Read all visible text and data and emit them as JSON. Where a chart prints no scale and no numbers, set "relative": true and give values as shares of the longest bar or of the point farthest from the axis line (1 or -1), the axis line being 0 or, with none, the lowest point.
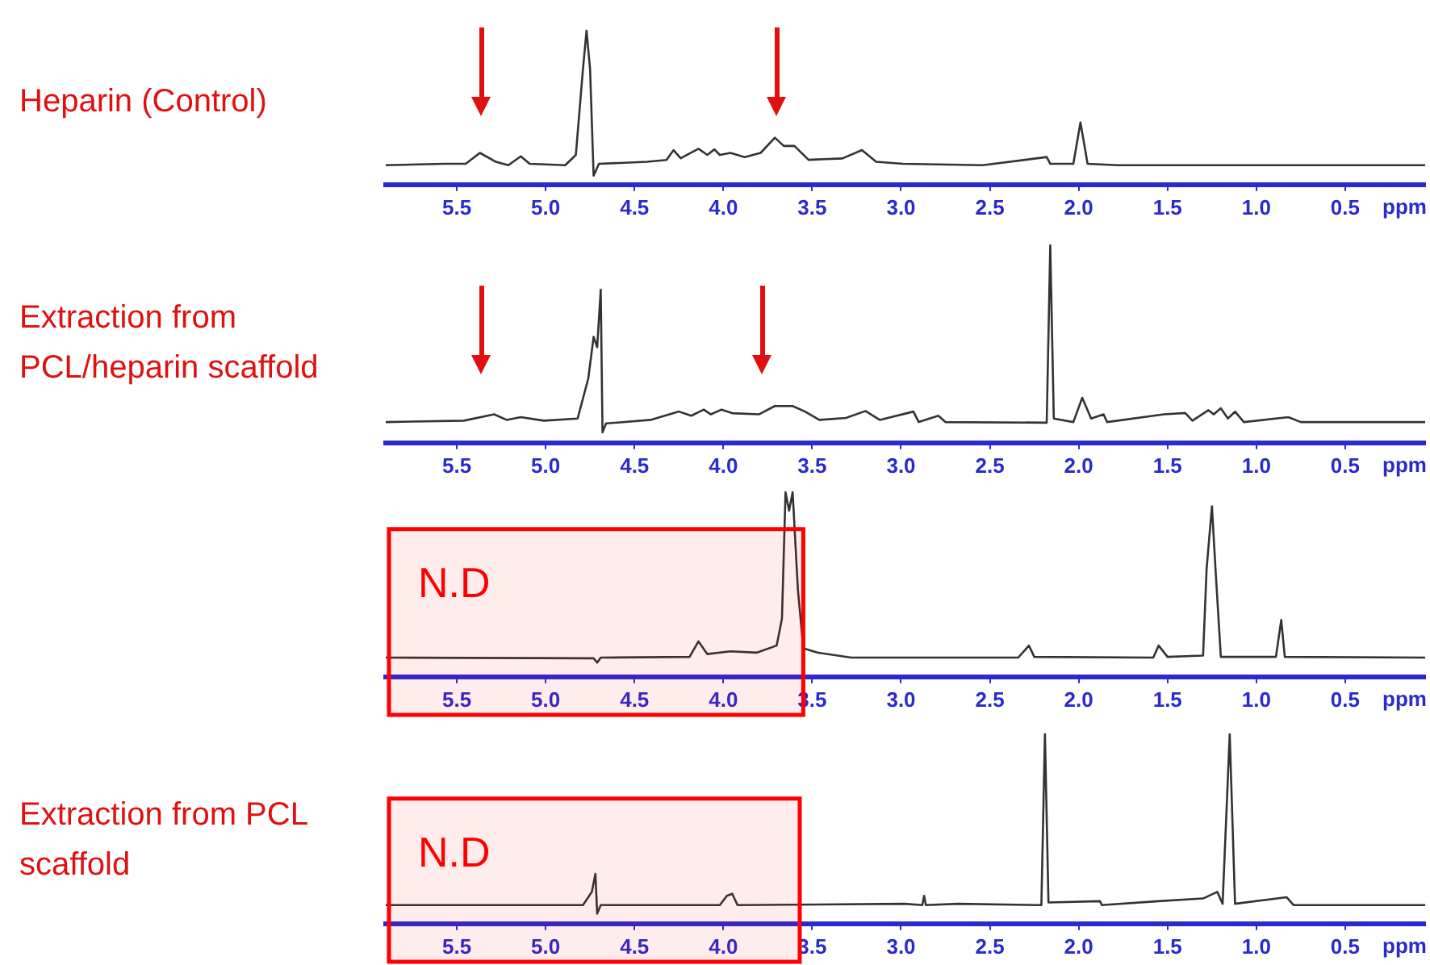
{
  "chart_data": [
    {
      "type": "line",
      "title": "Heparin (Control)",
      "xlabel": "ppm",
      "relative": true,
      "color": "#333333",
      "xlim": [
        5.9,
        0.05
      ],
      "xticks": [
        5.5,
        {
          "value": 5,
          "label": "5.0"
        },
        4.5,
        {
          "value": 4,
          "label": "4.0"
        },
        3.5,
        {
          "value": 3,
          "label": "3.0"
        },
        2.5,
        {
          "value": 2,
          "label": "2.0"
        },
        1.5,
        {
          "value": 1,
          "label": "1.0"
        },
        0.5
      ],
      "x": [
        5.9,
        5.57,
        5.45,
        5.37,
        5.28,
        5.21,
        5.14,
        5.09,
        4.89,
        4.83,
        4.79,
        4.77,
        4.75,
        4.73,
        4.7,
        4.43,
        4.32,
        4.28,
        4.24,
        4.14,
        4.09,
        4.05,
        4.02,
        3.96,
        3.88,
        3.79,
        3.71,
        3.66,
        3.6,
        3.52,
        3.33,
        3.22,
        3.14,
        2.99,
        2.54,
        2.18,
        2.16,
        2.03,
        1.99,
        1.95,
        1.78,
        0.05
      ],
      "values": [
        0.126,
        0.135,
        0.135,
        0.206,
        0.148,
        0.126,
        0.184,
        0.135,
        0.126,
        0.193,
        0.75,
        1,
        0.75,
        0.058,
        0.135,
        0.148,
        0.16,
        0.224,
        0.171,
        0.233,
        0.193,
        0.229,
        0.193,
        0.206,
        0.179,
        0.206,
        0.305,
        0.251,
        0.251,
        0.161,
        0.17,
        0.224,
        0.148,
        0.135,
        0.126,
        0.179,
        0.135,
        0.135,
        0.404,
        0.135,
        0.126,
        0.126
      ]
    },
    {
      "type": "line",
      "title": "Extraction from PCL/heparin scaffold",
      "xlabel": "ppm",
      "relative": true,
      "color": "#333333",
      "xlim": [
        5.9,
        0.05
      ],
      "xticks": [
        5.5,
        {
          "value": 5,
          "label": "5.0"
        },
        4.5,
        {
          "value": 4,
          "label": "4.0"
        },
        3.5,
        {
          "value": 3,
          "label": "3.0"
        },
        2.5,
        {
          "value": 2,
          "label": "2.0"
        },
        1.5,
        {
          "value": 1,
          "label": "1.0"
        },
        0.5
      ],
      "x": [
        5.9,
        5.46,
        5.29,
        5.22,
        5.14,
        5.01,
        4.82,
        4.76,
        4.73,
        4.71,
        4.69,
        4.68,
        4.66,
        4.41,
        4.25,
        4.18,
        4.11,
        4.07,
        4.01,
        3.95,
        3.8,
        3.71,
        3.61,
        3.54,
        3.46,
        3.31,
        3.2,
        3.12,
        2.93,
        2.9,
        2.79,
        2.75,
        2.18,
        2.16,
        2.14,
        2.03,
        1.98,
        1.93,
        1.86,
        1.84,
        1.52,
        1.4,
        1.36,
        1.27,
        1.24,
        1.2,
        1.16,
        1.12,
        1.07,
        0.82,
        0.75,
        0.05
      ],
      "values": [
        0.105,
        0.112,
        0.144,
        0.116,
        0.13,
        0.112,
        0.123,
        0.326,
        0.537,
        0.484,
        0.775,
        0.053,
        0.098,
        0.116,
        0.158,
        0.137,
        0.168,
        0.144,
        0.168,
        0.15,
        0.144,
        0.186,
        0.186,
        0.158,
        0.116,
        0.126,
        0.161,
        0.116,
        0.158,
        0.105,
        0.137,
        0.105,
        0.102,
        1,
        0.123,
        0.105,
        0.228,
        0.123,
        0.144,
        0.105,
        0.144,
        0.151,
        0.112,
        0.165,
        0.144,
        0.175,
        0.123,
        0.158,
        0.105,
        0.13,
        0.105,
        0.105
      ]
    },
    {
      "type": "line",
      "xlabel": "ppm",
      "relative": true,
      "color": "#333333",
      "xlim": [
        5.9,
        0.05
      ],
      "xticks": [
        5.5,
        {
          "value": 5,
          "label": "5.0"
        },
        4.5,
        {
          "value": 4,
          "label": "4.0"
        },
        3.5,
        {
          "value": 3,
          "label": "3.0"
        },
        2.5,
        {
          "value": 2,
          "label": "2.0"
        },
        1.5,
        {
          "value": 1,
          "label": "1.0"
        },
        0.5
      ],
      "x": [
        5.9,
        4.73,
        4.71,
        4.69,
        4.19,
        4.14,
        4.09,
        3.96,
        3.81,
        3.7,
        3.67,
        3.65,
        3.63,
        3.61,
        3.58,
        3.55,
        3.47,
        3.28,
        2.34,
        2.28,
        2.25,
        1.58,
        1.55,
        1.5,
        1.3,
        1.28,
        1.25,
        1.23,
        1.2,
        0.89,
        0.86,
        0.84,
        0.05
      ],
      "values": [
        0.104,
        0.1,
        0.077,
        0.104,
        0.108,
        0.192,
        0.123,
        0.138,
        0.131,
        0.169,
        0.315,
        1,
        0.9,
        1,
        0.469,
        0.154,
        0.131,
        0.104,
        0.104,
        0.169,
        0.108,
        0.104,
        0.169,
        0.108,
        0.115,
        0.585,
        0.923,
        0.585,
        0.108,
        0.108,
        0.308,
        0.108,
        0.104
      ],
      "bands": [
        {
          "axis": "x",
          "from": 5.9,
          "to": 3.55,
          "label": "N.D",
          "color": "#ff0000"
        }
      ]
    },
    {
      "type": "line",
      "title": "Extraction from PCL scaffold",
      "xlabel": "ppm",
      "relative": true,
      "color": "#333333",
      "xlim": [
        5.9,
        0.05
      ],
      "xticks": [
        5.5,
        {
          "value": 5,
          "label": "5.0"
        },
        4.5,
        {
          "value": 4,
          "label": "4.0"
        },
        3.5,
        {
          "value": 3,
          "label": "3.0"
        },
        2.5,
        {
          "value": 2,
          "label": "2.0"
        },
        1.5,
        {
          "value": 1,
          "label": "1.0"
        },
        0.5
      ],
      "x": [
        5.9,
        4.79,
        4.74,
        4.72,
        4.71,
        4.69,
        4.02,
        3.98,
        3.95,
        3.92,
        2.98,
        2.88,
        2.87,
        2.86,
        2.68,
        2.21,
        2.19,
        2.17,
        1.88,
        1.87,
        1.55,
        1.3,
        1.22,
        1.19,
        1.15,
        1.12,
        0.83,
        0.79,
        0.05
      ],
      "values": [
        0.098,
        0.098,
        0.168,
        0.263,
        0.053,
        0.098,
        0.098,
        0.147,
        0.158,
        0.098,
        0.105,
        0.098,
        0.147,
        0.098,
        0.105,
        0.098,
        1,
        0.112,
        0.119,
        0.098,
        0.119,
        0.133,
        0.168,
        0.105,
        1,
        0.105,
        0.14,
        0.098,
        0.098
      ],
      "bands": [
        {
          "axis": "x",
          "from": 5.9,
          "to": 3.57,
          "label": "N.D",
          "color": "#ff0000"
        }
      ]
    }
  ]
}
